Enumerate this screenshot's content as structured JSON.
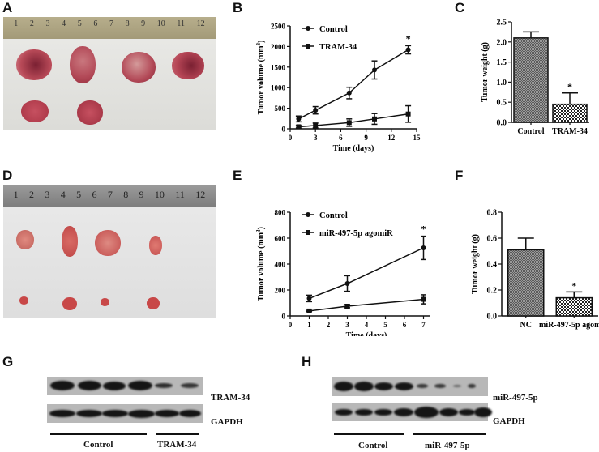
{
  "panels": {
    "A": {
      "letter": "A",
      "ruler_ticks": [
        "1",
        "2",
        "3",
        "4",
        "5",
        "6",
        "7",
        "8",
        "9",
        "10",
        "11",
        "12"
      ]
    },
    "B": {
      "letter": "B"
    },
    "C": {
      "letter": "C"
    },
    "D": {
      "letter": "D",
      "ruler_ticks": [
        "1",
        "2",
        "3",
        "4",
        "5",
        "6",
        "7",
        "8",
        "9",
        "10",
        "11",
        "12"
      ]
    },
    "E": {
      "letter": "E"
    },
    "F": {
      "letter": "F"
    },
    "G": {
      "letter": "G",
      "band_label_1": "TRAM-34",
      "band_label_2": "GAPDH",
      "group_1": "Control",
      "group_2": "TRAM-34"
    },
    "H": {
      "letter": "H",
      "band_label_1": "miR-497-5p",
      "band_label_2": "GAPDH",
      "group_1": "Control",
      "group_2": "miR-497-5p"
    }
  },
  "chart_data": [
    {
      "panel": "B",
      "type": "line",
      "title": "",
      "xlabel": "Time (days)",
      "ylabel": "Tumor volume (mm3)",
      "xlim": [
        0,
        15
      ],
      "ylim": [
        0,
        2500
      ],
      "xticks": [
        "0",
        "3",
        "6",
        "9",
        "12",
        "15"
      ],
      "yticks": [
        "0",
        "500",
        "1000",
        "1500",
        "2000",
        "2500"
      ],
      "x": [
        1,
        3,
        7,
        10,
        14
      ],
      "series": [
        {
          "name": "Control",
          "marker": "circle",
          "values": [
            240,
            450,
            870,
            1430,
            1920
          ],
          "errors": [
            70,
            90,
            140,
            220,
            100
          ]
        },
        {
          "name": "TRAM-34",
          "marker": "square",
          "values": [
            50,
            80,
            150,
            240,
            360
          ],
          "errors": [
            30,
            60,
            90,
            130,
            200
          ]
        }
      ],
      "annotations": [
        {
          "x": 14,
          "text": "*"
        }
      ],
      "legend_position": "upper left",
      "grid": false
    },
    {
      "panel": "C",
      "type": "bar",
      "title": "",
      "xlabel": "",
      "ylabel": "Tumor weight (g)",
      "ylim": [
        0,
        2.5
      ],
      "yticks": [
        "0.0",
        "0.5",
        "1.0",
        "1.5",
        "2.0",
        "2.5"
      ],
      "categories": [
        "Control",
        "TRAM-34"
      ],
      "values": [
        2.1,
        0.45
      ],
      "errors": [
        0.15,
        0.28
      ],
      "annotations": [
        {
          "category": "TRAM-34",
          "text": "*"
        }
      ],
      "grid": false
    },
    {
      "panel": "E",
      "type": "line",
      "title": "",
      "xlabel": "Time (days)",
      "ylabel": "Tumor volume (mm3)",
      "xlim": [
        0,
        8
      ],
      "ylim": [
        0,
        800
      ],
      "xticks": [
        "0",
        "1",
        "2",
        "3",
        "4",
        "5",
        "6",
        "7",
        "8"
      ],
      "yticks": [
        "0",
        "200",
        "400",
        "600",
        "800"
      ],
      "x": [
        1,
        3,
        7
      ],
      "series": [
        {
          "name": "Control",
          "marker": "circle",
          "values": [
            135,
            250,
            525
          ],
          "errors": [
            25,
            60,
            90
          ]
        },
        {
          "name": "miR-497-5p agomiR",
          "marker": "square",
          "values": [
            38,
            75,
            128
          ],
          "errors": [
            5,
            12,
            35
          ]
        }
      ],
      "annotations": [
        {
          "x": 7,
          "text": "*"
        }
      ],
      "legend_position": "upper left",
      "grid": false
    },
    {
      "panel": "F",
      "type": "bar",
      "title": "",
      "xlabel": "",
      "ylabel": "Tumor weight (g)",
      "ylim": [
        0,
        0.8
      ],
      "yticks": [
        "0.0",
        "0.2",
        "0.4",
        "0.6",
        "0.8"
      ],
      "categories": [
        "NC",
        "miR-497-5p agomiR"
      ],
      "values": [
        0.51,
        0.14
      ],
      "errors": [
        0.09,
        0.045
      ],
      "annotations": [
        {
          "category": "miR-497-5p agomiR",
          "text": "*"
        }
      ],
      "grid": false
    }
  ]
}
